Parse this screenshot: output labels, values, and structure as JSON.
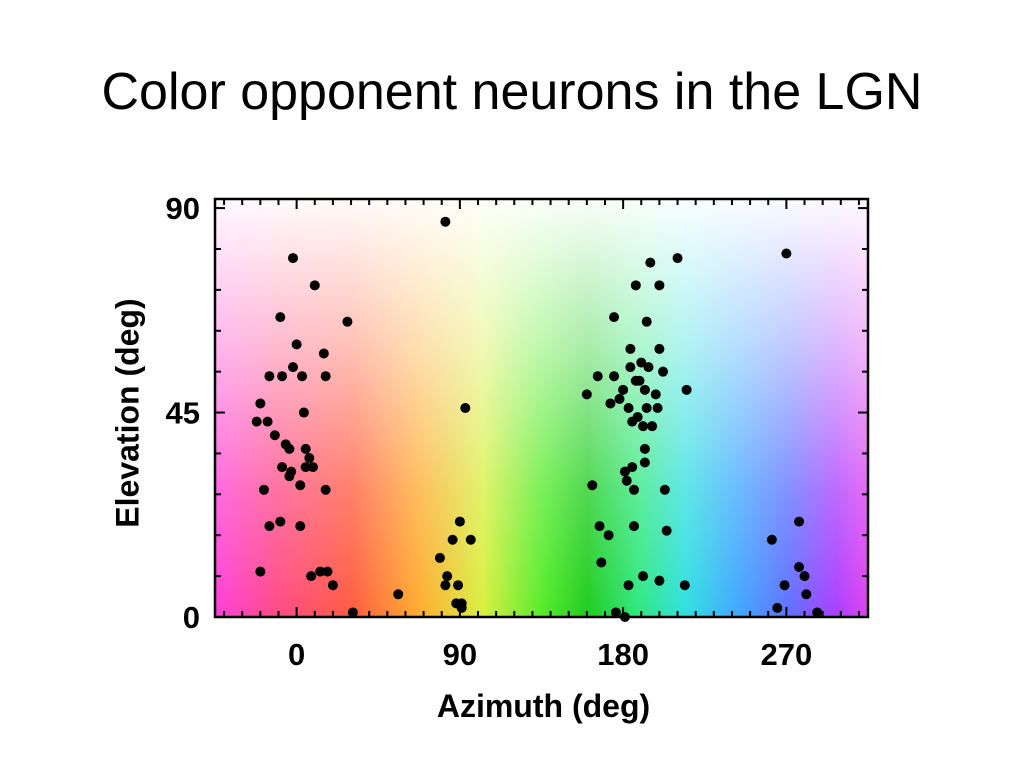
{
  "slide": {
    "title": "Color opponent neurons in the LGN"
  },
  "chart_data": {
    "type": "scatter",
    "title": "Color opponent neurons in the LGN",
    "xlabel": "Azimuth (deg)",
    "ylabel": "Elevation (deg)",
    "xlim": [
      -45,
      315
    ],
    "ylim": [
      0,
      92
    ],
    "xticks": [
      0,
      90,
      180,
      270
    ],
    "yticks": [
      0,
      45,
      90
    ],
    "background": "hue-gradient colormap (azimuth = hue, elevation = saturation)",
    "marker_color": "#000000",
    "points": [
      [
        -20,
        10
      ],
      [
        -20,
        47
      ],
      [
        -22,
        43
      ],
      [
        -18,
        28
      ],
      [
        -16,
        43
      ],
      [
        -15,
        20
      ],
      [
        -15,
        53
      ],
      [
        -12,
        40
      ],
      [
        -9,
        21
      ],
      [
        -9,
        66
      ],
      [
        -8,
        33
      ],
      [
        -8,
        53
      ],
      [
        -6,
        38
      ],
      [
        -4,
        37
      ],
      [
        -4,
        31
      ],
      [
        -3,
        32
      ],
      [
        -2,
        79
      ],
      [
        -2,
        55
      ],
      [
        0,
        60
      ],
      [
        2,
        29
      ],
      [
        2,
        20
      ],
      [
        3,
        53
      ],
      [
        4,
        45
      ],
      [
        5,
        37
      ],
      [
        5,
        33
      ],
      [
        7,
        35
      ],
      [
        8,
        9
      ],
      [
        9,
        33
      ],
      [
        10,
        73
      ],
      [
        13,
        10
      ],
      [
        15,
        58
      ],
      [
        16,
        53
      ],
      [
        16,
        28
      ],
      [
        17,
        10
      ],
      [
        20,
        7
      ],
      [
        28,
        65
      ],
      [
        31,
        1
      ],
      [
        56,
        5
      ],
      [
        79,
        13
      ],
      [
        82,
        87
      ],
      [
        82,
        7
      ],
      [
        83,
        9
      ],
      [
        86,
        17
      ],
      [
        88,
        3
      ],
      [
        89,
        7
      ],
      [
        90,
        21
      ],
      [
        91,
        3
      ],
      [
        91,
        2
      ],
      [
        93,
        46
      ],
      [
        96,
        17
      ],
      [
        160,
        49
      ],
      [
        163,
        29
      ],
      [
        166,
        53
      ],
      [
        167,
        20
      ],
      [
        168,
        12
      ],
      [
        172,
        18
      ],
      [
        173,
        47
      ],
      [
        175,
        53
      ],
      [
        175,
        66
      ],
      [
        176,
        1
      ],
      [
        178,
        48
      ],
      [
        180,
        50
      ],
      [
        181,
        0
      ],
      [
        181,
        32
      ],
      [
        182,
        30
      ],
      [
        183,
        46
      ],
      [
        183,
        7
      ],
      [
        184,
        59
      ],
      [
        184,
        55
      ],
      [
        185,
        43
      ],
      [
        185,
        33
      ],
      [
        186,
        28
      ],
      [
        186,
        20
      ],
      [
        187,
        52
      ],
      [
        187,
        73
      ],
      [
        188,
        44
      ],
      [
        189,
        52
      ],
      [
        190,
        56
      ],
      [
        191,
        42
      ],
      [
        191,
        9
      ],
      [
        192,
        37
      ],
      [
        192,
        34
      ],
      [
        192,
        50
      ],
      [
        193,
        46
      ],
      [
        193,
        65
      ],
      [
        194,
        55
      ],
      [
        195,
        78
      ],
      [
        196,
        42
      ],
      [
        198,
        49
      ],
      [
        199,
        46
      ],
      [
        200,
        73
      ],
      [
        200,
        59
      ],
      [
        200,
        8
      ],
      [
        202,
        54
      ],
      [
        203,
        28
      ],
      [
        204,
        19
      ],
      [
        210,
        79
      ],
      [
        214,
        7
      ],
      [
        215,
        50
      ],
      [
        270,
        80
      ],
      [
        262,
        17
      ],
      [
        265,
        2
      ],
      [
        269,
        7
      ],
      [
        277,
        11
      ],
      [
        277,
        21
      ],
      [
        280,
        9
      ],
      [
        281,
        5
      ],
      [
        287,
        1
      ]
    ]
  }
}
